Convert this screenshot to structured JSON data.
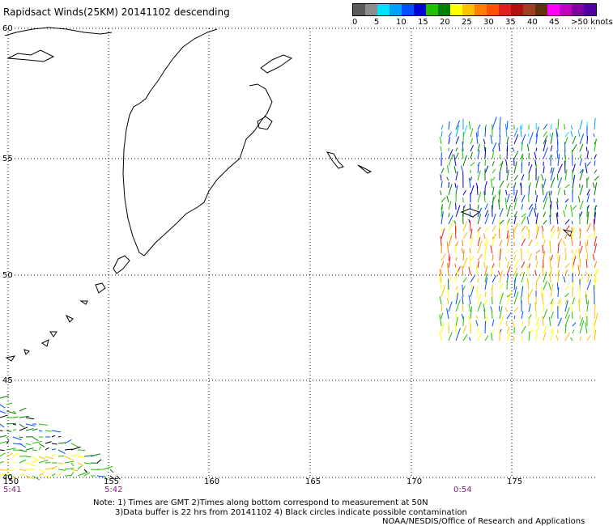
{
  "title": "Rapidsact Winds(25KM) 20141102 descending",
  "scale": {
    "colors": [
      "#5a5a5a",
      "#8c8c8c",
      "#00e0ff",
      "#00a0ff",
      "#0050ff",
      "#0000d0",
      "#20c000",
      "#008000",
      "#ffff00",
      "#ffc000",
      "#ff8000",
      "#ff5000",
      "#e02020",
      "#b01010",
      "#a04020",
      "#603010",
      "#ff00ff",
      "#c000c0",
      "#8000a0",
      "#5000a0"
    ],
    "labels": [
      "0",
      "5",
      "10",
      "15",
      "20",
      "25",
      "30",
      "35",
      "40",
      "45",
      ">50 knots"
    ]
  },
  "map": {
    "lat_labels": [
      "60",
      "55",
      "50",
      "45",
      "40"
    ],
    "lon_labels": [
      "150",
      "155",
      "160",
      "165",
      "170",
      "175"
    ]
  },
  "times": [
    "5:41",
    "5:42",
    "0:54"
  ],
  "notes": {
    "line1": "Note: 1) Times are GMT 2)Times along bottom correspond to measurement at 50N",
    "line2": "3)Data buffer is 22 hrs from 20141102 4) Black circles indicate possible contamination",
    "line3": "NOAA/NESDIS/Office of Research and Applications"
  }
}
